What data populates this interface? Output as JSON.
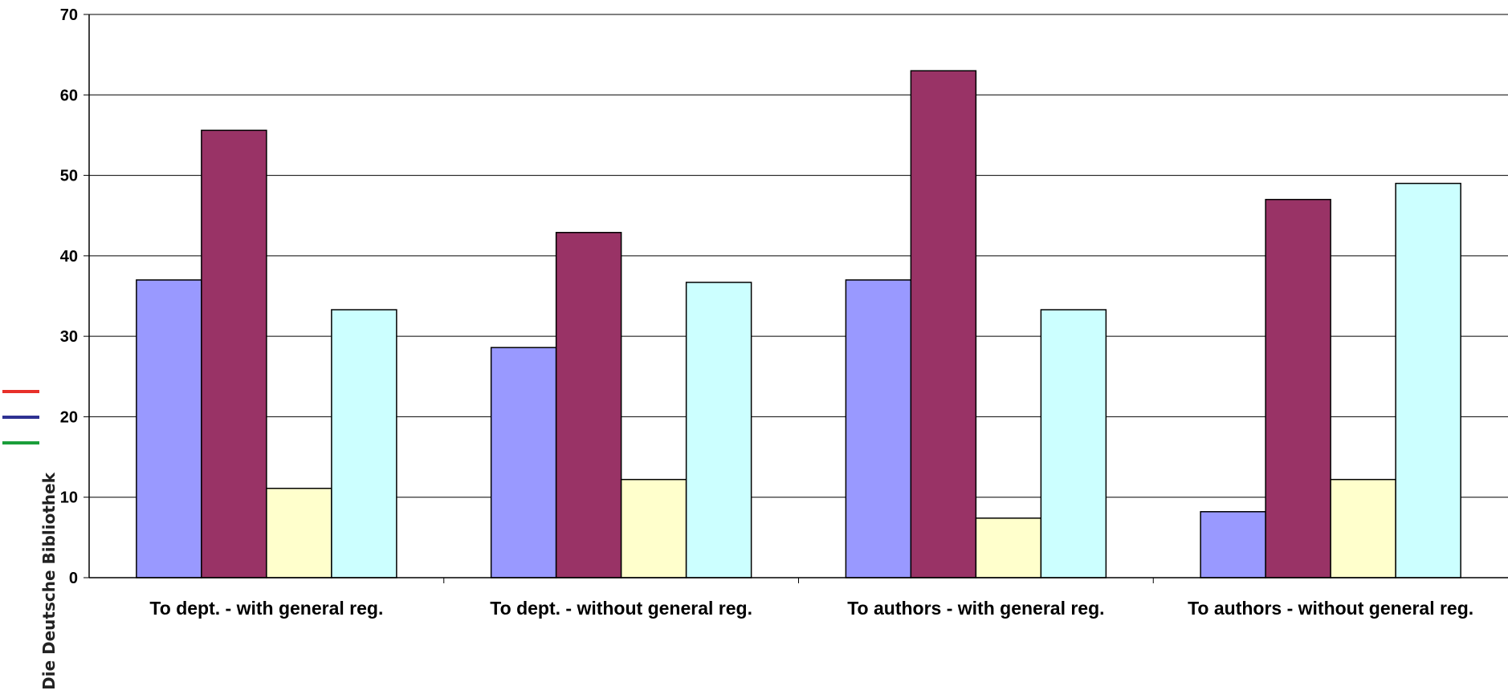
{
  "chart_data": {
    "type": "bar",
    "title": "",
    "xlabel": "",
    "ylabel": "",
    "ylim": [
      0,
      70
    ],
    "yticks": [
      0,
      10,
      20,
      30,
      40,
      50,
      60,
      70
    ],
    "grid": true,
    "categories": [
      "To dept. - with general reg.",
      "To dept. - without general reg.",
      "To authors - with general reg.",
      "To authors - without general reg."
    ],
    "series": [
      {
        "color": "#9999FF",
        "values": [
          37,
          28.6,
          37,
          8.2
        ]
      },
      {
        "color": "#993366",
        "values": [
          55.6,
          42.9,
          63,
          47
        ]
      },
      {
        "color": "#FFFFCC",
        "values": [
          11.1,
          12.2,
          7.4,
          12.2
        ]
      },
      {
        "color": "#CCFFFF",
        "values": [
          33.3,
          36.7,
          33.3,
          49
        ]
      }
    ]
  },
  "side_logo": {
    "text": "Die Deutsche Bibliothek",
    "line_colors": [
      "#E8302A",
      "#2E3192",
      "#1A9E3A"
    ]
  }
}
